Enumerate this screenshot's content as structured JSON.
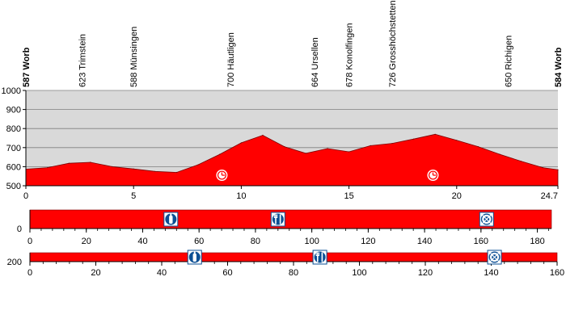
{
  "colors": {
    "fill": "#ff0000",
    "stroke": "#7a0000",
    "plot_bg": "#d9d9d9",
    "grid": "#7f7f7f",
    "marker": "#0b4f94",
    "axis": "#000000"
  },
  "chart_data": [
    {
      "type": "area",
      "title": "",
      "xlabel": "",
      "ylabel": "",
      "xlim": [
        0,
        24.7
      ],
      "ylim": [
        500,
        1000
      ],
      "grid": true,
      "x_ticks": [
        0,
        5,
        10,
        15,
        20
      ],
      "x_tick_labels": [
        "0",
        "5",
        "10",
        "15",
        "20",
        "24.7"
      ],
      "x_end_tick": 24.7,
      "y_ticks": [
        500,
        600,
        700,
        800,
        900,
        1000
      ],
      "y_tick_labels": [
        "500",
        "600",
        "700",
        "800",
        "900",
        "1000"
      ],
      "series": [
        {
          "x": [
            0,
            1,
            2,
            3,
            4,
            5,
            6,
            7,
            8,
            9,
            10,
            11,
            12,
            13,
            14,
            15,
            16,
            17,
            18,
            19,
            20,
            21,
            22,
            23,
            24,
            24.7
          ],
          "values": [
            587,
            595,
            618,
            623,
            600,
            588,
            575,
            570,
            610,
            665,
            725,
            765,
            705,
            670,
            695,
            678,
            710,
            722,
            745,
            770,
            738,
            705,
            665,
            628,
            595,
            584
          ]
        }
      ],
      "locations": [
        {
          "x": 0,
          "label": "587 Worb",
          "bold": true
        },
        {
          "x": 2.6,
          "label": "623 Trimstein",
          "bold": false
        },
        {
          "x": 5,
          "label": "588 Münsingen",
          "bold": false
        },
        {
          "x": 9.5,
          "label": "700 Häutligen",
          "bold": false
        },
        {
          "x": 13.4,
          "label": "664 Ursellen",
          "bold": false
        },
        {
          "x": 15,
          "label": "678 Konolfingen",
          "bold": false
        },
        {
          "x": 17,
          "label": "726 Grosshöchstetten",
          "bold": false
        },
        {
          "x": 22.4,
          "label": "650 Richigen",
          "bold": false
        },
        {
          "x": 24.7,
          "label": "584 Worb",
          "bold": true
        }
      ],
      "markers": [
        {
          "x": 9.1,
          "icon": "clock-icon"
        },
        {
          "x": 18.9,
          "icon": "clock-icon"
        }
      ]
    },
    {
      "type": "bar",
      "title": "",
      "xlim": [
        0,
        185
      ],
      "ylim": [
        0,
        1
      ],
      "x_ticks": [
        0,
        20,
        40,
        60,
        80,
        100,
        120,
        140,
        160,
        180
      ],
      "x_tick_labels": [
        "0",
        "20",
        "40",
        "60",
        "80",
        "100",
        "120",
        "140",
        "160",
        "180"
      ],
      "y_tick_labels": [
        "0"
      ],
      "markers": [
        {
          "x": 50,
          "icon": "bottle-icon"
        },
        {
          "x": 88,
          "icon": "food-icon"
        },
        {
          "x": 162,
          "icon": "lifebuoy-icon"
        }
      ]
    },
    {
      "type": "bar",
      "title": "",
      "xlim": [
        0,
        160
      ],
      "x_ticks": [
        0,
        20,
        40,
        60,
        80,
        100,
        120,
        140,
        160
      ],
      "x_tick_labels": [
        "0",
        "20",
        "40",
        "60",
        "80",
        "100",
        "120",
        "140",
        "160"
      ],
      "y_tick_labels": [
        "200"
      ],
      "markers": [
        {
          "x": 50,
          "icon": "bottle-icon"
        },
        {
          "x": 88,
          "icon": "food-icon"
        },
        {
          "x": 141,
          "icon": "lifebuoy-icon"
        }
      ]
    }
  ]
}
